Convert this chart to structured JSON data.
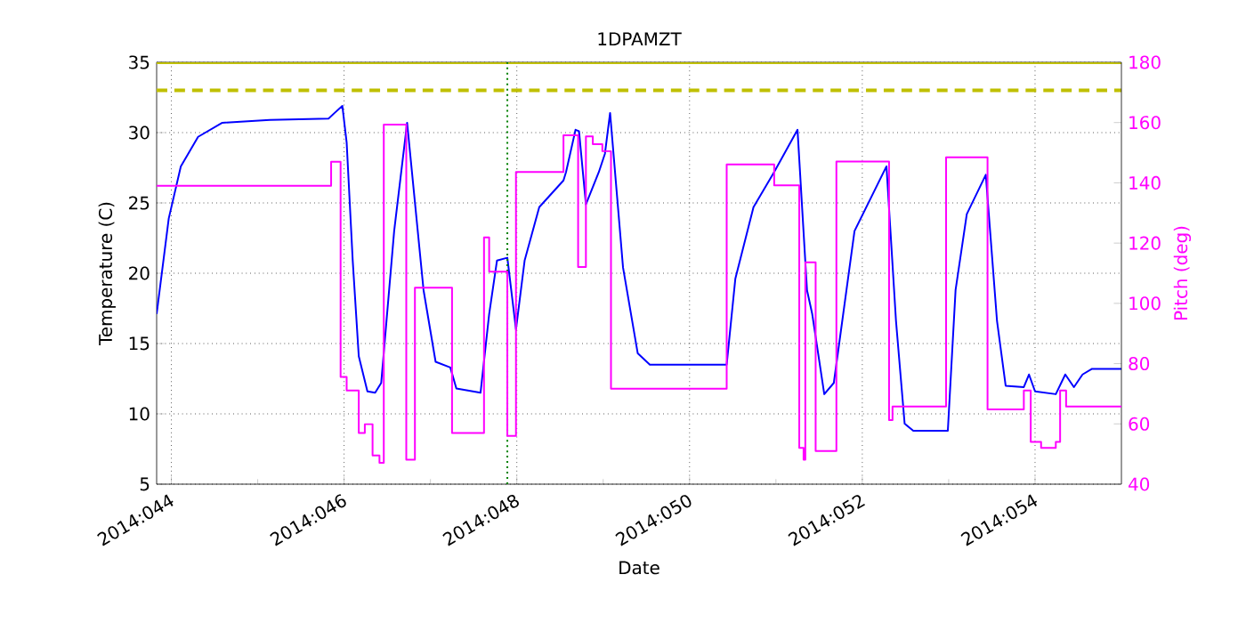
{
  "chart_data": {
    "type": "line",
    "title": "1DPAMZT",
    "xlabel": "Date",
    "ylabel": "Temperature (C)",
    "y2label": "Pitch (deg)",
    "xlim": [
      "2014-02-12T19:55",
      "2014-02-24T00:00"
    ],
    "xticks": [
      {
        "value": "2014-02-13",
        "label": "2014:044"
      },
      {
        "value": "2014-02-15",
        "label": "2014:046"
      },
      {
        "value": "2014-02-17",
        "label": "2014:048"
      },
      {
        "value": "2014-02-19",
        "label": "2014:050"
      },
      {
        "value": "2014-02-21",
        "label": "2014:052"
      },
      {
        "value": "2014-02-23",
        "label": "2014:054"
      }
    ],
    "ylim": [
      5,
      35
    ],
    "yticks": [
      5,
      10,
      15,
      20,
      25,
      30,
      35
    ],
    "y2lim": [
      40,
      180
    ],
    "y2ticks": [
      40,
      60,
      80,
      100,
      120,
      140,
      160,
      180
    ],
    "grid": true,
    "ref_lines": [
      {
        "axis": "y",
        "value": 33,
        "color": "#bfbf00",
        "line_style": "dashed"
      },
      {
        "axis": "y",
        "value": 35,
        "color": "#bfbf00",
        "line_style": "solid"
      },
      {
        "axis": "x",
        "value": "2014-02-16T21:22",
        "color": "#008000",
        "line_style": "dotted"
      }
    ],
    "series": [
      {
        "color": "#0000ff",
        "x": [
          "2014-02-12T19:55",
          "2014-02-12T23:17",
          "2014-02-13T02:38",
          "2014-02-13T07:26",
          "2014-02-13T14:10",
          "2014-02-14T03:22",
          "2014-02-14T19:41",
          "2014-02-14T21:22",
          "2014-02-14T23:31",
          "2014-02-15T00:43",
          "2014-02-15T02:24",
          "2014-02-15T04:05",
          "2014-02-15T06:29",
          "2014-02-15T08:38",
          "2014-02-15T10:19",
          "2014-02-15T13:55",
          "2014-02-15T17:31",
          "2014-02-15T22:05",
          "2014-02-16T01:26",
          "2014-02-16T05:31",
          "2014-02-16T07:12",
          "2014-02-16T13:55",
          "2014-02-16T16:19",
          "2014-02-16T18:29",
          "2014-02-16T21:22",
          "2014-02-16T23:46",
          "2014-02-17T02:10",
          "2014-02-17T06:14",
          "2014-02-17T12:58",
          "2014-02-17T13:41",
          "2014-02-17T16:19",
          "2014-02-17T17:17",
          "2014-02-17T19:12",
          "2014-02-17T22:48",
          "2014-02-18T00:29",
          "2014-02-18T01:55",
          "2014-02-18T05:31",
          "2014-02-18T09:36",
          "2014-02-18T12:58",
          "2014-02-19T10:19",
          "2014-02-19T12:43",
          "2014-02-19T17:46",
          "2014-02-19T23:31",
          "2014-02-20T06:00",
          "2014-02-20T08:38",
          "2014-02-20T10:05",
          "2014-02-20T13:26",
          "2014-02-20T16:05",
          "2014-02-20T21:50",
          "2014-02-21T06:43",
          "2014-02-21T09:22",
          "2014-02-21T11:46",
          "2014-02-21T14:10",
          "2014-02-21T23:46",
          "2014-02-22T01:55",
          "2014-02-22T05:02",
          "2014-02-22T10:19",
          "2014-02-22T13:26",
          "2014-02-22T15:50",
          "2014-02-22T20:53",
          "2014-02-22T22:19",
          "2014-02-23T00:00",
          "2014-02-23T05:46",
          "2014-02-23T08:24",
          "2014-02-23T10:48",
          "2014-02-23T13:12",
          "2014-02-23T15:50",
          "2014-02-24T00:00"
        ],
        "values": [
          17.1,
          23.9,
          27.6,
          29.7,
          30.7,
          30.9,
          31.0,
          31.4,
          31.9,
          29.3,
          20.9,
          14.1,
          11.6,
          11.5,
          12.2,
          23.0,
          30.7,
          18.8,
          13.7,
          13.3,
          11.8,
          11.5,
          17.1,
          20.9,
          21.1,
          16.0,
          20.9,
          24.7,
          26.6,
          27.2,
          30.2,
          30.1,
          24.9,
          27.2,
          28.5,
          31.4,
          20.4,
          14.3,
          13.5,
          13.5,
          19.6,
          24.7,
          27.2,
          30.2,
          18.8,
          17.1,
          11.4,
          12.2,
          23.0,
          27.6,
          16.6,
          9.3,
          8.8,
          8.8,
          18.8,
          24.2,
          27.0,
          16.6,
          12.0,
          11.9,
          12.8,
          11.6,
          11.4,
          12.8,
          11.9,
          12.8,
          13.2,
          13.2
        ]
      },
      {
        "type": "step",
        "axis": "y2",
        "color": "#ff00ff",
        "x": [
          "2014-02-12T19:55",
          "2014-02-14T20:24",
          "2014-02-14T23:02",
          "2014-02-15T00:43",
          "2014-02-15T04:05",
          "2014-02-15T05:46",
          "2014-02-15T07:55",
          "2014-02-15T09:50",
          "2014-02-15T11:02",
          "2014-02-15T17:17",
          "2014-02-15T19:41",
          "2014-02-16T06:00",
          "2014-02-16T14:53",
          "2014-02-16T16:19",
          "2014-02-16T18:29",
          "2014-02-16T21:22",
          "2014-02-16T23:46",
          "2014-02-17T12:58",
          "2014-02-17T17:02",
          "2014-02-17T19:12",
          "2014-02-17T21:07",
          "2014-02-17T23:46",
          "2014-02-18T02:10",
          "2014-02-19T10:19",
          "2014-02-19T23:31",
          "2014-02-20T06:29",
          "2014-02-20T07:41",
          "2014-02-20T08:10",
          "2014-02-20T11:02",
          "2014-02-20T16:48",
          "2014-02-21T07:26",
          "2014-02-21T08:24",
          "2014-02-21T23:17",
          "2014-02-22T10:48",
          "2014-02-22T20:53",
          "2014-02-22T22:48",
          "2014-02-23T01:41",
          "2014-02-23T05:46",
          "2014-02-23T06:58",
          "2014-02-23T08:38",
          "2014-02-24T00:00"
        ],
        "values": [
          139,
          147,
          75.6,
          71.1,
          57,
          59.9,
          49.5,
          47.1,
          159.3,
          48.1,
          105.2,
          57,
          121.9,
          110.5,
          110.5,
          56,
          143.6,
          155.8,
          112.1,
          155.4,
          152.8,
          150.5,
          71.7,
          146.1,
          139.2,
          52,
          48.1,
          113.6,
          51,
          147.1,
          61.3,
          65.8,
          148.5,
          64.8,
          71.1,
          54,
          52,
          54,
          71.1,
          65.8,
          65.8
        ]
      }
    ]
  }
}
